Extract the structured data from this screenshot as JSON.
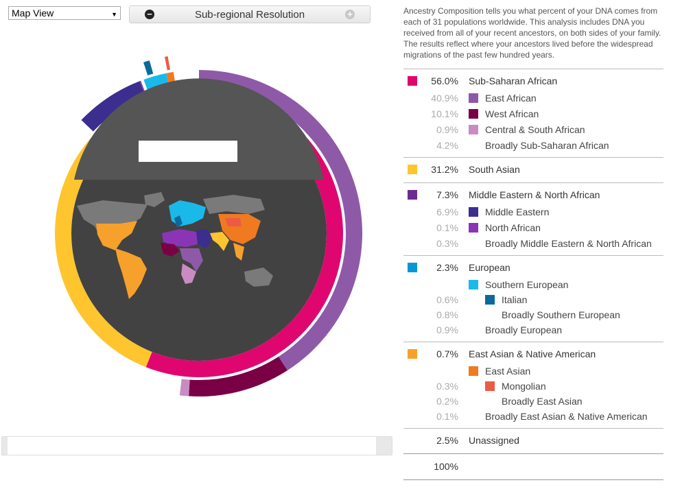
{
  "toolbar": {
    "view_select": "Map View",
    "resolution_label": "Sub-regional Resolution"
  },
  "intro_text": "Ancestry Composition tells you what percent of your DNA comes from each of 31 populations worldwide. This analysis includes DNA you received from all of your recent ancestors, on both sides of your family. The results reflect where your ancestors lived before the widespread migrations of the past few hundred years.",
  "colors": {
    "sub_saharan": "#e0066f",
    "east_african": "#8e5aa8",
    "west_african": "#7a0046",
    "central_south_african": "#c98bc2",
    "south_asian": "#fec52e",
    "middle_eastern_na": "#6a2c91",
    "middle_eastern": "#3c2e8f",
    "north_african": "#8b35b6",
    "european": "#0597d7",
    "southern_european": "#19baea",
    "italian": "#0a6a9c",
    "east_asian_na": "#f6a12b",
    "east_asian": "#f07a20",
    "mongolian": "#ec5b45",
    "map_bg": "#424242",
    "map_land": "#7a7a7a"
  },
  "ancestry": [
    {
      "pct": "56.0%",
      "label": "Sub-Saharan African",
      "level": 0,
      "color": "#e0066f"
    },
    {
      "pct": "40.9%",
      "label": "East African",
      "level": 1,
      "color": "#8e5aa8"
    },
    {
      "pct": "10.1%",
      "label": "West African",
      "level": 1,
      "color": "#7a0046"
    },
    {
      "pct": "0.9%",
      "label": "Central & South African",
      "level": 1,
      "color": "#c98bc2"
    },
    {
      "pct": "4.2%",
      "label": "Broadly Sub-Saharan African",
      "level": 1,
      "color": null
    },
    {
      "pct": "31.2%",
      "label": "South Asian",
      "level": 0,
      "color": "#fec52e"
    },
    {
      "pct": "7.3%",
      "label": "Middle Eastern & North African",
      "level": 0,
      "color": "#6a2c91"
    },
    {
      "pct": "6.9%",
      "label": "Middle Eastern",
      "level": 1,
      "color": "#3c2e8f"
    },
    {
      "pct": "0.1%",
      "label": "North African",
      "level": 1,
      "color": "#8b35b6"
    },
    {
      "pct": "0.3%",
      "label": "Broadly Middle Eastern & North African",
      "level": 1,
      "color": null
    },
    {
      "pct": "2.3%",
      "label": "European",
      "level": 0,
      "color": "#0597d7"
    },
    {
      "pct": "",
      "label": "Southern European",
      "level": 1,
      "color": "#19baea"
    },
    {
      "pct": "0.6%",
      "label": "Italian",
      "level": 2,
      "color": "#0a6a9c"
    },
    {
      "pct": "0.8%",
      "label": "Broadly Southern European",
      "level": 2,
      "color": null
    },
    {
      "pct": "0.9%",
      "label": "Broadly European",
      "level": 1,
      "color": null
    },
    {
      "pct": "0.7%",
      "label": "East Asian & Native American",
      "level": 0,
      "color": "#f6a12b"
    },
    {
      "pct": "",
      "label": "East Asian",
      "level": 1,
      "color": "#f07a20"
    },
    {
      "pct": "0.3%",
      "label": "Mongolian",
      "level": 2,
      "color": "#ec5b45"
    },
    {
      "pct": "0.2%",
      "label": "Broadly East Asian",
      "level": 2,
      "color": null
    },
    {
      "pct": "0.1%",
      "label": "Broadly East Asian & Native American",
      "level": 1,
      "color": null
    },
    {
      "pct": "2.5%",
      "label": "Unassigned",
      "level": 0,
      "color": null
    },
    {
      "pct": "100%",
      "label": "",
      "level": 0,
      "color": null
    }
  ]
}
